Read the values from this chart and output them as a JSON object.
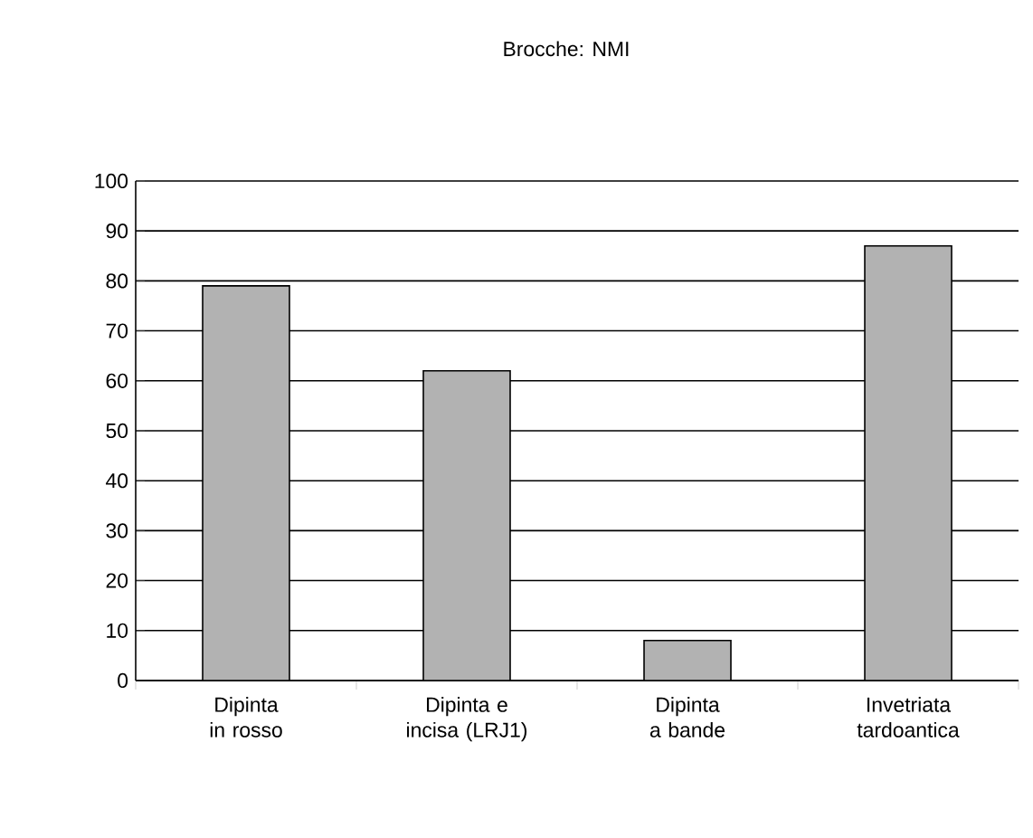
{
  "chart_data": {
    "type": "bar",
    "title": "Brocche: NMI",
    "categories": [
      "Dipinta in rosso",
      "Dipinta e incisa (LRJ1)",
      "Dipinta a bande",
      "Invetriata tardoantica"
    ],
    "values": [
      79,
      62,
      8,
      87
    ],
    "color": "#b2b2b2",
    "ylim": [
      0,
      100
    ],
    "yticks": [
      0,
      10,
      20,
      30,
      40,
      50,
      60,
      70,
      80,
      90,
      100
    ],
    "grid": "y"
  }
}
